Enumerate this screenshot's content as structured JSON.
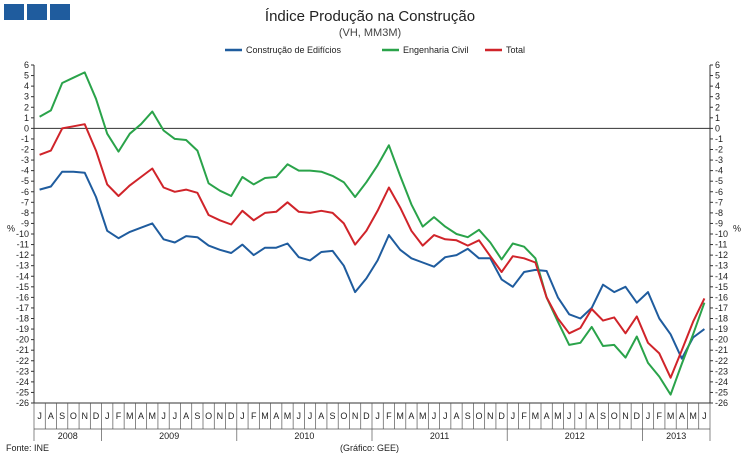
{
  "header": {
    "logo_icon": "logo-blocks-icon",
    "logo_color": "#1f5c9e"
  },
  "chart_data": {
    "type": "line",
    "title": "Índice Produção na Construção",
    "subtitle": "(VH, MM3M)",
    "ylabel_left": "%",
    "ylabel_right": "%",
    "ylim": [
      -26,
      6
    ],
    "y_ticks": [
      6,
      5,
      4,
      3,
      2,
      1,
      0,
      -1,
      -2,
      -3,
      -4,
      -5,
      -6,
      -7,
      -8,
      -9,
      -10,
      -11,
      -12,
      -13,
      -14,
      -15,
      -16,
      -17,
      -18,
      -19,
      -20,
      -21,
      -22,
      -23,
      -24,
      -25,
      -26
    ],
    "grid": false,
    "legend_position": "top-center",
    "months": [
      "J",
      "A",
      "S",
      "O",
      "N",
      "D",
      "J",
      "F",
      "M",
      "A",
      "M",
      "J",
      "J",
      "A",
      "S",
      "O",
      "N",
      "D",
      "J",
      "F",
      "M",
      "A",
      "M",
      "J",
      "J",
      "A",
      "S",
      "O",
      "N",
      "D",
      "J",
      "F",
      "M",
      "A",
      "M",
      "J",
      "J",
      "A",
      "S",
      "O",
      "N",
      "D",
      "J",
      "F",
      "M",
      "A",
      "M",
      "J",
      "J",
      "A",
      "S",
      "O",
      "N",
      "D",
      "J",
      "F",
      "M",
      "A",
      "M",
      "J"
    ],
    "years": [
      {
        "label": "2008",
        "start": 0,
        "end": 6
      },
      {
        "label": "2009",
        "start": 6,
        "end": 18
      },
      {
        "label": "2010",
        "start": 18,
        "end": 30
      },
      {
        "label": "2011",
        "start": 30,
        "end": 42
      },
      {
        "label": "2012",
        "start": 42,
        "end": 54
      },
      {
        "label": "2013",
        "start": 54,
        "end": 60
      }
    ],
    "series": [
      {
        "name": "Construção de Edifícios",
        "color": "#1f5c9e",
        "values": [
          -5.8,
          -5.5,
          -4.1,
          -4.1,
          -4.2,
          -6.5,
          -9.7,
          -10.4,
          -9.8,
          -9.4,
          -9.0,
          -10.5,
          -10.8,
          -10.2,
          -10.3,
          -11.1,
          -11.5,
          -11.8,
          -11.0,
          -12.0,
          -11.3,
          -11.3,
          -10.9,
          -12.2,
          -12.5,
          -11.7,
          -11.6,
          -13.0,
          -15.5,
          -14.2,
          -12.5,
          -10.1,
          -11.5,
          -12.3,
          -12.7,
          -13.1,
          -12.2,
          -12.0,
          -11.4,
          -12.3,
          -12.3,
          -14.3,
          -15.0,
          -13.6,
          -13.4,
          -13.5,
          -16.0,
          -17.6,
          -18.0,
          -17.0,
          -14.8,
          -15.5,
          -15.0,
          -16.5,
          -15.5,
          -18.0,
          -19.5,
          -21.8,
          -19.8,
          -19.0
        ]
      },
      {
        "name": "Engenharia Civil",
        "color": "#2aa34a",
        "values": [
          1.1,
          1.7,
          4.3,
          4.8,
          5.3,
          2.8,
          -0.5,
          -2.2,
          -0.5,
          0.4,
          1.6,
          -0.2,
          -1.0,
          -1.1,
          -2.1,
          -5.2,
          -5.9,
          -6.4,
          -4.6,
          -5.3,
          -4.7,
          -4.6,
          -3.4,
          -4.0,
          -4.0,
          -4.1,
          -4.5,
          -5.1,
          -6.5,
          -5.1,
          -3.5,
          -1.6,
          -4.5,
          -7.2,
          -9.3,
          -8.4,
          -9.3,
          -10.0,
          -10.3,
          -9.6,
          -10.8,
          -12.4,
          -10.9,
          -11.2,
          -12.3,
          -16.0,
          -18.3,
          -20.5,
          -20.3,
          -18.8,
          -20.6,
          -20.5,
          -21.7,
          -19.7,
          -22.2,
          -23.5,
          -25.2,
          -22.3,
          -19.5,
          -16.5
        ]
      },
      {
        "name": "Total",
        "color": "#d0242a",
        "values": [
          -2.5,
          -2.1,
          0.0,
          0.2,
          0.4,
          -2.1,
          -5.3,
          -6.4,
          -5.4,
          -4.6,
          -3.8,
          -5.6,
          -6.0,
          -5.8,
          -6.1,
          -8.2,
          -8.7,
          -9.1,
          -7.8,
          -8.7,
          -8.0,
          -7.9,
          -7.0,
          -7.9,
          -8.0,
          -7.8,
          -8.0,
          -9.0,
          -11.0,
          -9.7,
          -7.8,
          -5.6,
          -7.5,
          -9.7,
          -11.1,
          -10.1,
          -10.5,
          -10.6,
          -11.1,
          -10.6,
          -12.1,
          -13.6,
          -12.1,
          -12.3,
          -12.7,
          -16.0,
          -18.0,
          -19.4,
          -18.9,
          -17.1,
          -18.2,
          -17.9,
          -19.4,
          -17.8,
          -20.3,
          -21.3,
          -23.6,
          -21.0,
          -18.3,
          -16.1
        ]
      }
    ]
  },
  "footer": {
    "source": "Fonte: INE",
    "credit": "(Gráfico: GEE)"
  }
}
